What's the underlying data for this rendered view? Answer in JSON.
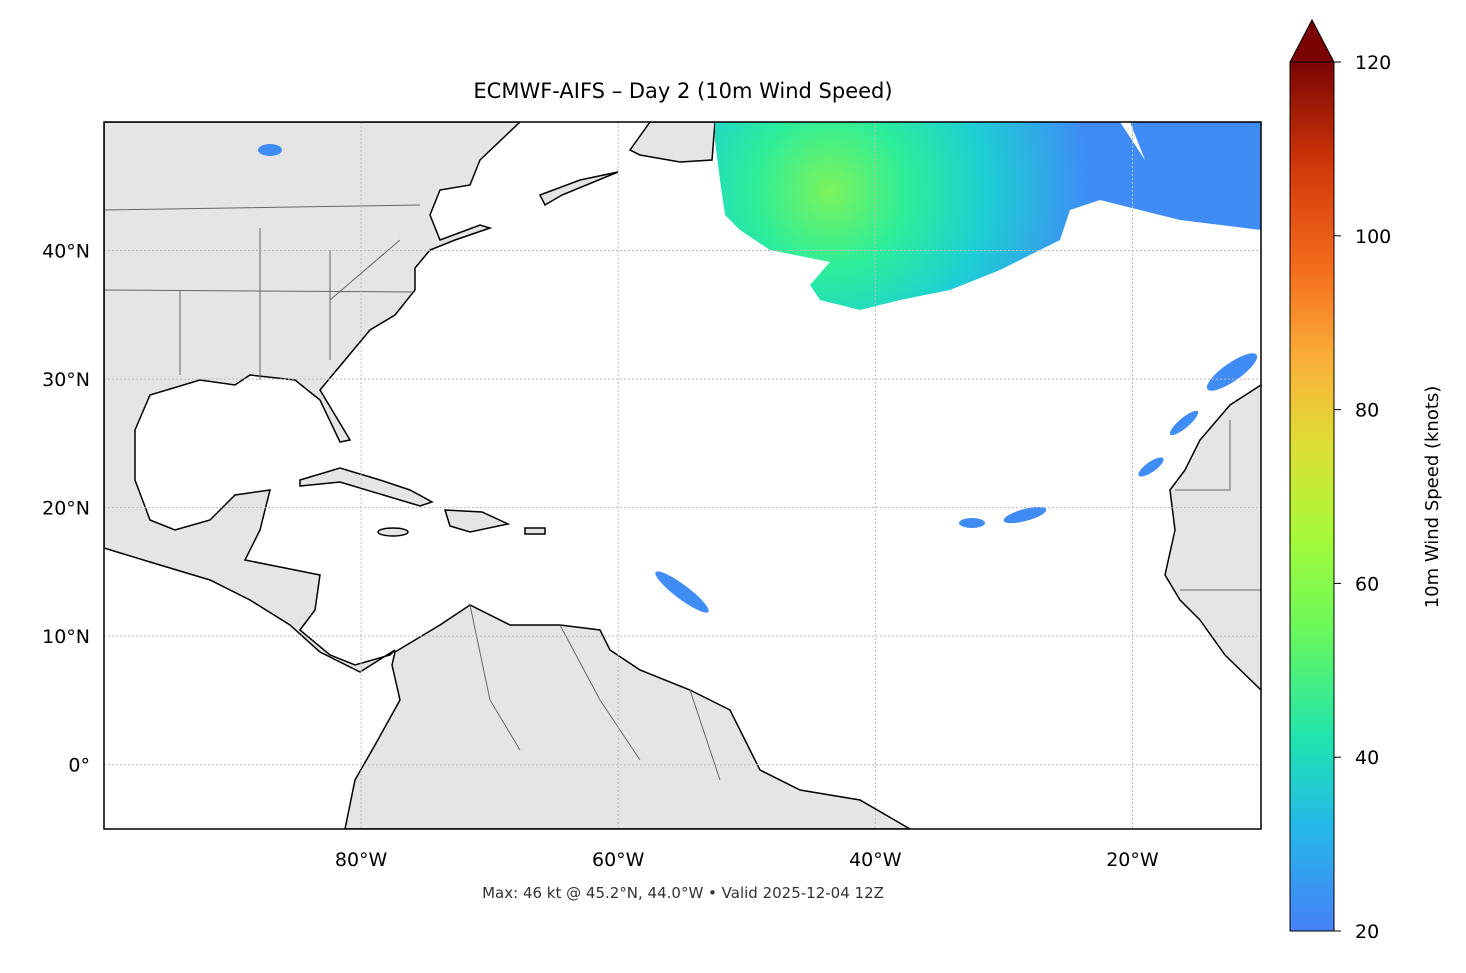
{
  "chart_data": {
    "type": "map",
    "title": "ECMWF-AIFS – Day 2 (10m Wind Speed)",
    "xlim": [
      -100,
      -10
    ],
    "ylim": [
      -5,
      50
    ],
    "xticks": [
      {
        "value": -80,
        "label": "80°W"
      },
      {
        "value": -60,
        "label": "60°W"
      },
      {
        "value": -40,
        "label": "40°W"
      },
      {
        "value": -20,
        "label": "20°W"
      }
    ],
    "yticks": [
      {
        "value": 0,
        "label": "0°"
      },
      {
        "value": 10,
        "label": "10°N"
      },
      {
        "value": 20,
        "label": "20°N"
      },
      {
        "value": 30,
        "label": "30°N"
      },
      {
        "value": 40,
        "label": "40°N"
      }
    ],
    "grid": true,
    "colorbar": {
      "label": "10m Wind Speed (knots)",
      "lim": [
        20,
        120
      ],
      "ticks": [
        20,
        40,
        60,
        80,
        100,
        120
      ]
    },
    "footer": "Max: 46 kt @ 45.2°N, 44.0°W • Valid 2025-12-04 12Z"
  }
}
